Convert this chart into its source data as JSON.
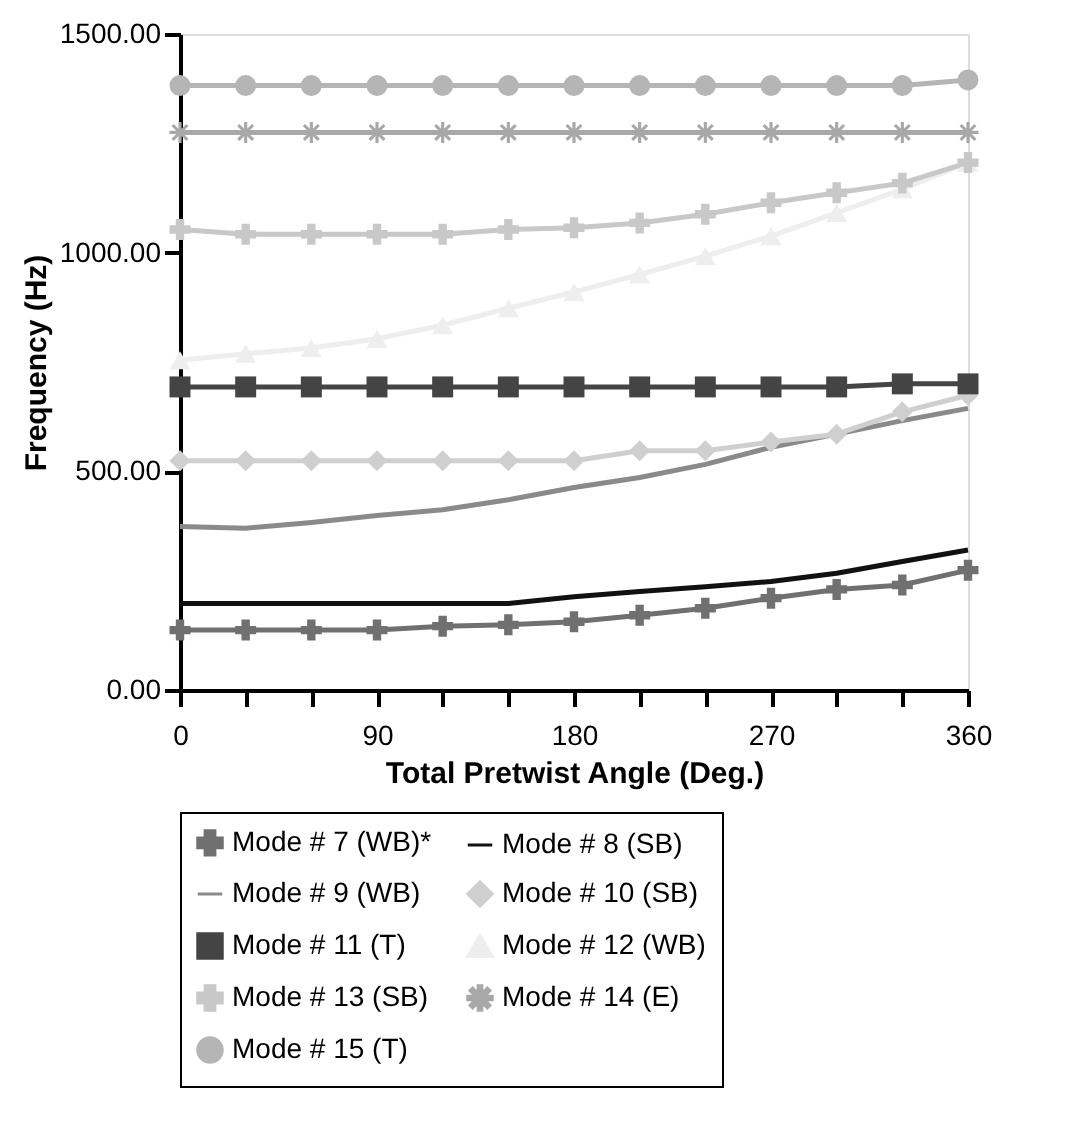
{
  "chart_data": {
    "type": "line",
    "xlabel": "Total Pretwist Angle (Deg.)",
    "ylabel": "Frequency (Hz)",
    "x": [
      0,
      30,
      60,
      90,
      120,
      150,
      180,
      210,
      240,
      270,
      300,
      330,
      360
    ],
    "xlim": [
      0,
      360
    ],
    "ylim": [
      0,
      1500
    ],
    "xticks": [
      0,
      {
        "value": 30,
        "label": null
      },
      {
        "value": 60,
        "label": null
      },
      90,
      {
        "value": 120,
        "label": null
      },
      {
        "value": 150,
        "label": null
      },
      180,
      {
        "value": 210,
        "label": null
      },
      {
        "value": 240,
        "label": null
      },
      270,
      {
        "value": 300,
        "label": null
      },
      {
        "value": 330,
        "label": null
      },
      360
    ],
    "yticks": [
      {
        "value": 0,
        "label": "0.00"
      },
      {
        "value": 500,
        "label": "500.00"
      },
      {
        "value": 1000,
        "label": "1000.00"
      },
      {
        "value": 1500,
        "label": "1500.00"
      }
    ],
    "grid": false,
    "legend": "bottom",
    "line_style": "solid",
    "series": [
      {
        "name": "Mode # 7 (WB)*",
        "color": "#707070",
        "marker": "cross",
        "values": [
          137,
          137,
          137,
          137,
          146,
          149,
          156,
          171,
          187,
          210,
          230,
          240,
          274
        ]
      },
      {
        "name": "Mode # 8 (SB)",
        "color": "#111111",
        "marker": "none",
        "values": [
          198,
          198,
          198,
          198,
          198,
          198,
          213,
          225,
          236,
          248,
          267,
          294,
          320
        ]
      },
      {
        "name": "Mode # 9 (WB)",
        "color": "#8a8a8a",
        "marker": "none",
        "values": [
          374,
          370,
          383,
          399,
          412,
          435,
          463,
          486,
          516,
          555,
          585,
          616,
          644
        ]
      },
      {
        "name": "Mode # 10 (SB)",
        "color": "#cfcfcf",
        "marker": "diamond",
        "values": [
          524,
          524,
          524,
          524,
          524,
          524,
          524,
          547,
          547,
          567,
          585,
          636,
          674
        ]
      },
      {
        "name": "Mode # 11 (T)",
        "color": "#444444",
        "marker": "square",
        "values": [
          693,
          693,
          693,
          693,
          693,
          693,
          693,
          693,
          693,
          693,
          693,
          700,
          700
        ]
      },
      {
        "name": "Mode # 12 (WB)",
        "color": "#eeeeee",
        "marker": "triangle",
        "values": [
          754,
          769,
          782,
          803,
          834,
          873,
          910,
          950,
          992,
          1038,
          1091,
          1145,
          1206
        ]
      },
      {
        "name": "Mode # 13 (SB)",
        "color": "#c8c8c8",
        "marker": "cross",
        "values": [
          1053,
          1042,
          1042,
          1042,
          1042,
          1053,
          1057,
          1068,
          1088,
          1114,
          1137,
          1159,
          1206
        ]
      },
      {
        "name": "Mode # 14 (E)",
        "color": "#a8a8a8",
        "marker": "star",
        "values": [
          1275,
          1275,
          1275,
          1275,
          1275,
          1275,
          1275,
          1275,
          1275,
          1275,
          1275,
          1275,
          1275
        ]
      },
      {
        "name": "Mode # 15 (T)",
        "color": "#b5b5b5",
        "marker": "circle",
        "values": [
          1382,
          1382,
          1382,
          1382,
          1382,
          1382,
          1382,
          1382,
          1382,
          1382,
          1382,
          1382,
          1395
        ]
      }
    ]
  }
}
